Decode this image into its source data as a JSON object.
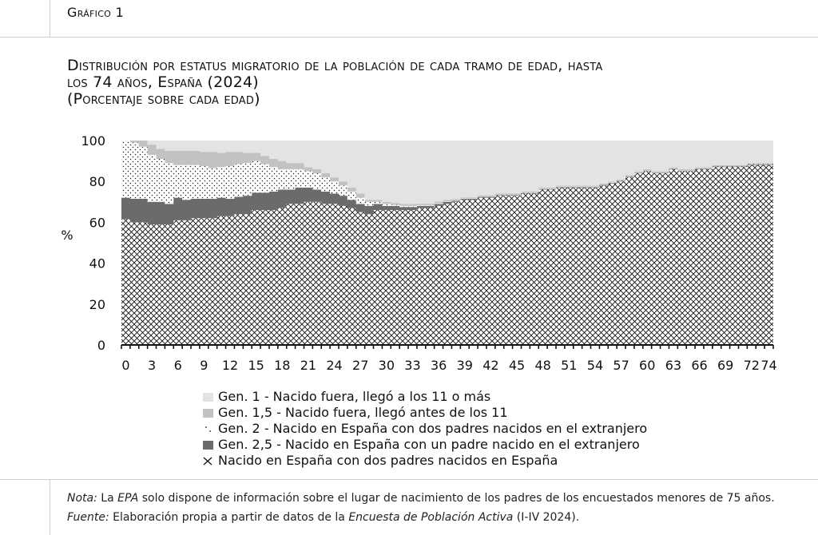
{
  "header": {
    "figure_label": "Gráfico 1"
  },
  "title": {
    "line1": "Distribución por estatus migratorio de la población de cada tramo de edad, hasta",
    "line2": "los 74 años, España (2024)",
    "line3": "(Porcentaje sobre cada edad)"
  },
  "chart_data": {
    "type": "area",
    "title": "Distribución por estatus migratorio de la población de cada tramo de edad, hasta los 74 años, España (2024)",
    "ylabel": "%",
    "xlabel": "",
    "ylim": [
      0,
      100
    ],
    "yticks": [
      0,
      20,
      40,
      60,
      80,
      100
    ],
    "xticks": [
      0,
      3,
      6,
      9,
      12,
      15,
      18,
      21,
      24,
      27,
      30,
      33,
      36,
      39,
      42,
      45,
      48,
      51,
      54,
      57,
      60,
      63,
      66,
      69,
      72,
      74
    ],
    "stacked": true,
    "grid": false,
    "legend_position": "bottom",
    "x": [
      0,
      1,
      2,
      3,
      4,
      5,
      6,
      7,
      8,
      9,
      10,
      11,
      12,
      13,
      14,
      15,
      16,
      17,
      18,
      19,
      20,
      21,
      22,
      23,
      24,
      25,
      26,
      27,
      28,
      29,
      30,
      31,
      32,
      33,
      34,
      35,
      36,
      37,
      38,
      39,
      40,
      41,
      42,
      43,
      44,
      45,
      46,
      47,
      48,
      49,
      50,
      51,
      52,
      53,
      54,
      55,
      56,
      57,
      58,
      59,
      60,
      61,
      62,
      63,
      64,
      65,
      66,
      67,
      68,
      69,
      70,
      71,
      72,
      73,
      74
    ],
    "series": [
      {
        "name": "Nacido en España con dos padres nacidos en España",
        "values": [
          61.5,
          60,
          60,
          59,
          59,
          59,
          61,
          61,
          62,
          62,
          62,
          63,
          63,
          64,
          64,
          66,
          66,
          66,
          67,
          69,
          69,
          70,
          70,
          69,
          69,
          68,
          67,
          65,
          64,
          66,
          66,
          66,
          66,
          66,
          67,
          67,
          68,
          69,
          70,
          71,
          71,
          72,
          72,
          73,
          73,
          73,
          74,
          74,
          76,
          76,
          77,
          77,
          77,
          77,
          77,
          78,
          79,
          80,
          82,
          84,
          85,
          84,
          84,
          86,
          85,
          85,
          86,
          86,
          87,
          87,
          87,
          87,
          88,
          88,
          88
        ]
      },
      {
        "name": "Gen. 2,5 - Nacido en España con un padre nacido en el extranjero",
        "values": [
          10.5,
          11.5,
          11.5,
          11,
          11,
          10,
          11,
          10,
          9.5,
          9.5,
          9.5,
          9,
          8.5,
          8.5,
          9,
          8.5,
          8.5,
          9,
          9,
          7,
          8,
          7,
          6,
          6,
          5,
          5,
          4,
          4,
          4,
          3,
          2,
          2,
          1.5,
          1.5,
          1,
          1,
          1,
          1,
          0.5,
          0.5,
          0.5,
          0.5,
          0.5,
          0.3,
          0.3,
          0.3,
          0.3,
          0.3,
          0.3,
          0.3,
          0.3,
          0.3,
          0.3,
          0.3,
          0.3,
          0.3,
          0.3,
          0.3,
          0.3,
          0.3,
          0.3,
          0.3,
          0.3,
          0.3,
          0.3,
          0.3,
          0.3,
          0.3,
          0.3,
          0.3,
          0.3,
          0.3,
          0.3,
          0.3,
          0.3
        ]
      },
      {
        "name": "Gen. 2 - Nacido en España con dos padres nacidos en el extranjero",
        "values": [
          28,
          27.5,
          25.5,
          23,
          21,
          20,
          16,
          17,
          16.5,
          16,
          15,
          15,
          16,
          16,
          16,
          15.5,
          14,
          12,
          10,
          10,
          9,
          8,
          8,
          7,
          6,
          5,
          4,
          3,
          2,
          1,
          1,
          0.5,
          0.5,
          0.5,
          0.3,
          0.3,
          0.3,
          0.2,
          0.2,
          0.2,
          0.2,
          0.2,
          0.2,
          0.2,
          0.2,
          0.2,
          0.2,
          0.2,
          0.2,
          0.2,
          0.2,
          0.2,
          0.2,
          0.2,
          0.2,
          0.2,
          0.2,
          0.2,
          0.2,
          0.2,
          0.2,
          0.2,
          0.2,
          0.2,
          0.2,
          0.2,
          0.2,
          0.2,
          0.2,
          0.2,
          0.2,
          0.2,
          0.2,
          0.2,
          0.2
        ]
      },
      {
        "name": "Gen. 1,5 - Nacido fuera, llegó antes de los 11",
        "values": [
          0,
          1,
          3,
          5,
          5,
          6,
          7,
          7,
          7,
          7,
          8,
          7,
          7,
          6,
          5,
          4,
          4,
          4,
          4,
          3,
          3,
          2,
          2,
          2,
          2,
          2,
          2,
          2,
          1,
          1,
          1,
          1,
          1,
          1,
          0.8,
          0.8,
          0.8,
          0.7,
          0.6,
          0.5,
          0.5,
          0.5,
          0.5,
          0.5,
          0.5,
          0.5,
          0.5,
          0.5,
          0.5,
          0.5,
          0.5,
          0.5,
          0.5,
          0.5,
          0.5,
          0.5,
          0.5,
          0.5,
          0.5,
          0.5,
          0.5,
          0.5,
          0.5,
          0.5,
          0.5,
          0.5,
          0.5,
          0.5,
          0.5,
          0.5,
          0.5,
          0.5,
          0.5,
          0.5,
          0.5
        ]
      },
      {
        "name": "Gen. 1 - Nacido fuera, llegó a los 11 o más",
        "values": [
          0,
          0,
          0,
          2,
          4,
          5,
          5,
          5,
          5,
          5.5,
          5.5,
          6,
          5.5,
          5.5,
          6,
          6,
          7.5,
          9,
          10,
          11,
          11,
          13,
          14,
          16,
          18,
          20,
          23,
          26,
          29,
          29,
          30,
          30.5,
          31,
          31,
          30.9,
          30.9,
          29.9,
          29.1,
          28.7,
          27.8,
          27.8,
          26.8,
          26.8,
          26,
          26,
          26,
          25,
          25,
          23,
          23,
          22,
          22,
          22,
          22,
          22,
          21,
          20,
          19,
          17,
          15,
          14,
          15,
          15,
          13,
          14,
          14,
          13,
          13,
          12,
          12,
          12,
          12,
          11,
          11,
          11
        ]
      }
    ]
  },
  "legend": {
    "items": [
      "Gen. 1 - Nacido fuera, llegó a los 11 o más",
      "Gen. 1,5 - Nacido fuera, llegó antes de los 11",
      "Gen. 2 - Nacido en España con dos padres nacidos en el extranjero",
      "Gen. 2,5 - Nacido en España con un padre nacido en el extranjero",
      "Nacido en España con dos padres nacidos en España"
    ]
  },
  "notes": {
    "nota_label": "Nota:",
    "nota_pre": " La ",
    "nota_epa": "EPA",
    "nota_post": " solo dispone de información sobre el lugar de nacimiento de los padres de los encuestados menores de 75 años.",
    "fuente_label": "Fuente:",
    "fuente_pre": " Elaboración propia a partir de datos de la ",
    "fuente_source": "Encuesta de Población Activa",
    "fuente_post": " (I-IV 2024)."
  },
  "colors": {
    "gen1": "#e3e3e3",
    "gen15": "#c2c2c2",
    "gen2_dots": "#222222",
    "gen25": "#6b6b6b",
    "native_cross": "#111111",
    "rule": "#cfcfcf"
  }
}
